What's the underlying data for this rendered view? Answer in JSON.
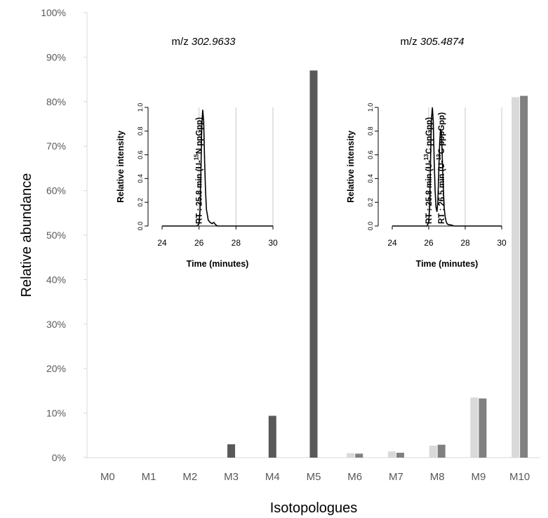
{
  "chart_data": [
    {
      "type": "bar",
      "xlabel": "Isotopologues",
      "ylabel": "Relative abundance",
      "ylim": [
        0,
        100
      ],
      "ytick_labels": [
        "0%",
        "10%",
        "20%",
        "30%",
        "40%",
        "50%",
        "60%",
        "70%",
        "80%",
        "90%",
        "100%"
      ],
      "grid": false,
      "legend": "none",
      "categories": [
        "M0",
        "M1",
        "M2",
        "M3",
        "M4",
        "M5",
        "M6",
        "M7",
        "M8",
        "M9",
        "M10"
      ],
      "series": [
        {
          "color": "#595959",
          "values": [
            0,
            0,
            0,
            3.0,
            9.4,
            87.0,
            null,
            null,
            null,
            null,
            null
          ]
        },
        {
          "color": "#d9d9d9",
          "values": [
            null,
            null,
            null,
            null,
            null,
            null,
            1.0,
            1.4,
            2.7,
            13.5,
            81.0
          ]
        },
        {
          "color": "#808080",
          "values": [
            null,
            null,
            null,
            null,
            null,
            null,
            0.9,
            1.1,
            2.9,
            13.3,
            81.3
          ]
        }
      ]
    },
    {
      "type": "line",
      "title_prefix": "m/z",
      "title_value": "302.9633",
      "xlabel": "Time (minutes)",
      "ylabel": "Relative intensity",
      "xlim": [
        24,
        30
      ],
      "ylim": [
        0,
        1.0
      ],
      "x_ticks": [
        "24",
        "26",
        "28",
        "30"
      ],
      "y_ticks": [
        "0.0",
        "0.2",
        "0.4",
        "0.6",
        "0.8",
        "1.0"
      ],
      "grid": "vertical",
      "annotations": [
        {
          "x": 25.8,
          "text_prefix": "RT : 25.8 min  (U-",
          "sup": "15",
          "text_suffix": "N ppGpp)"
        }
      ],
      "series": [
        {
          "x": [
            24.0,
            25.9,
            26.0,
            26.05,
            26.1,
            26.15,
            26.2,
            26.25,
            26.3,
            26.35,
            26.4,
            26.5,
            26.6,
            26.7,
            26.8,
            26.9,
            27.0,
            28.0,
            30.0
          ],
          "y": [
            0.0,
            0.0,
            0.02,
            0.12,
            0.45,
            0.85,
            0.98,
            0.88,
            0.55,
            0.3,
            0.14,
            0.05,
            0.03,
            0.02,
            0.03,
            0.01,
            0.0,
            0.0,
            0.0
          ]
        }
      ]
    },
    {
      "type": "line",
      "title_prefix": "m/z",
      "title_value": "305.4874",
      "xlabel": "Time (minutes)",
      "ylabel": "Relative intensity",
      "xlim": [
        24,
        30
      ],
      "ylim": [
        0,
        1.0
      ],
      "x_ticks": [
        "24",
        "26",
        "28",
        "30"
      ],
      "y_ticks": [
        "0.0",
        "0.2",
        "0.4",
        "0.6",
        "0.8",
        "1.0"
      ],
      "grid": "vertical",
      "annotations": [
        {
          "x": 25.8,
          "text_prefix": "RT : 25.8 min (U-",
          "sup": "13",
          "text_suffix": "C ppGpp)"
        },
        {
          "x": 26.5,
          "text_prefix": "RT : 26.5 min (U-",
          "sup": "13",
          "text_suffix": "C pppGpp)"
        }
      ],
      "series": [
        {
          "x": [
            24.0,
            25.9,
            26.0,
            26.05,
            26.1,
            26.15,
            26.2,
            26.25,
            26.3,
            26.35,
            26.4,
            26.45,
            26.5,
            26.55,
            26.6,
            26.65,
            26.7,
            26.75,
            26.8,
            26.85,
            26.9,
            26.95,
            27.0,
            27.1,
            27.2,
            27.4,
            28.0,
            30.0
          ],
          "y": [
            0.0,
            0.0,
            0.03,
            0.15,
            0.55,
            0.9,
            1.0,
            0.88,
            0.55,
            0.3,
            0.16,
            0.12,
            0.2,
            0.45,
            0.7,
            0.82,
            0.78,
            0.55,
            0.32,
            0.15,
            0.08,
            0.04,
            0.02,
            0.01,
            0.01,
            0.0,
            0.0,
            0.0
          ]
        }
      ]
    }
  ]
}
